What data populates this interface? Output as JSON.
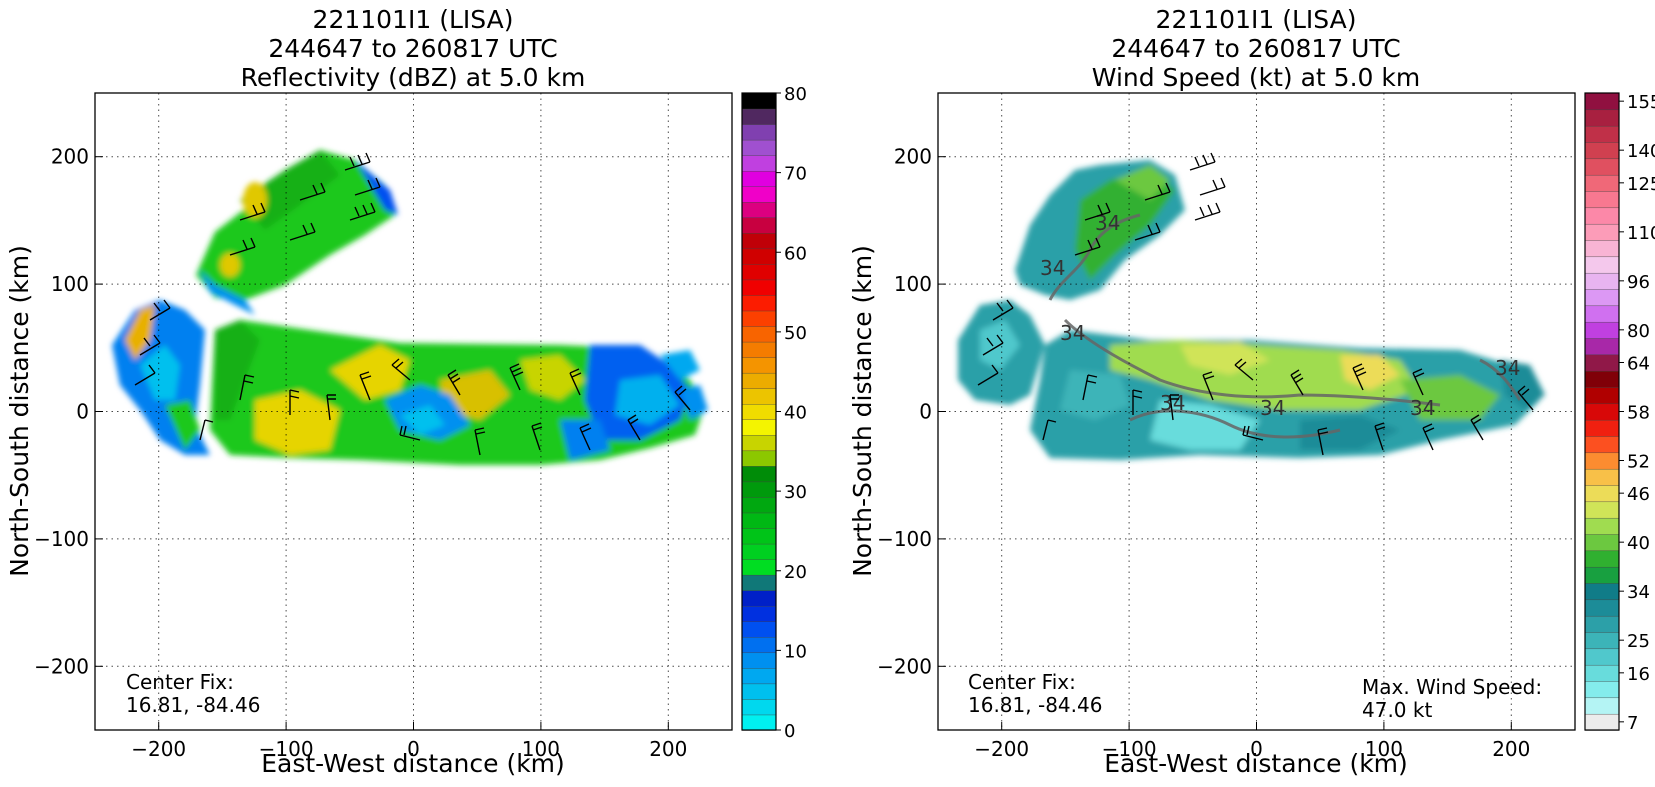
{
  "chart_data": [
    {
      "type": "heatmap",
      "title_lines": [
        "221101I1 (LISA)",
        "244647 to 260817 UTC",
        "Reflectivity (dBZ) at 5.0 km"
      ],
      "xlabel": "East-West distance (km)",
      "ylabel": "North-South distance (km)",
      "xlim": [
        -250,
        250
      ],
      "ylim": [
        -250,
        250
      ],
      "xticks": [
        -200,
        -100,
        0,
        100,
        200
      ],
      "yticks": [
        -200,
        -100,
        0,
        100,
        200
      ],
      "grid": true,
      "annotations": [
        {
          "text": "Center Fix:",
          "position": "bottom-left"
        },
        {
          "text": "16.81, -84.46",
          "position": "bottom-left"
        }
      ],
      "colorbar": {
        "range": [
          0,
          80
        ],
        "ticks": [
          0,
          10,
          20,
          30,
          40,
          50,
          60,
          70,
          80
        ],
        "colors": [
          "#00f0f0",
          "#00d8ee",
          "#00c0ee",
          "#00a8f0",
          "#0090f0",
          "#0070f0",
          "#0050f0",
          "#0030e0",
          "#0020c8",
          "#107878",
          "#00dd22",
          "#00d020",
          "#00c418",
          "#00b814",
          "#00a810",
          "#009a0c",
          "#008c08",
          "#8cc800",
          "#c8d400",
          "#f4f400",
          "#f0dc00",
          "#ecc400",
          "#ecac00",
          "#f49400",
          "#f47c00",
          "#f86400",
          "#fc4000",
          "#fc1c00",
          "#f00000",
          "#e00000",
          "#d00000",
          "#c00008",
          "#c80040",
          "#dc0080",
          "#f000c8",
          "#e000e0",
          "#c040e0",
          "#a050d0",
          "#8040b0",
          "#502860",
          "#000000"
        ]
      },
      "series": [
        {
          "region": "outer band north-west",
          "x_range": [
            -170,
            -10
          ],
          "y_range": [
            100,
            205
          ],
          "dbz_range": [
            15,
            40
          ]
        },
        {
          "region": "western band",
          "x_range": [
            -235,
            -165
          ],
          "y_range": [
            -35,
            85
          ],
          "dbz_range": [
            5,
            40
          ]
        },
        {
          "region": "main core",
          "x_range": [
            -160,
            150
          ],
          "y_range": [
            -40,
            55
          ],
          "dbz_range": [
            20,
            40
          ]
        },
        {
          "region": "eastern band",
          "x_range": [
            100,
            230
          ],
          "y_range": [
            -20,
            50
          ],
          "dbz_range": [
            0,
            20
          ]
        }
      ]
    },
    {
      "type": "heatmap",
      "title_lines": [
        "221101I1 (LISA)",
        "244647 to 260817 UTC",
        "Wind Speed (kt) at 5.0 km"
      ],
      "xlabel": "East-West distance (km)",
      "ylabel": "North-South distance (km)",
      "xlim": [
        -250,
        250
      ],
      "ylim": [
        -250,
        250
      ],
      "xticks": [
        -200,
        -100,
        0,
        100,
        200
      ],
      "yticks": [
        -200,
        -100,
        0,
        100,
        200
      ],
      "grid": true,
      "annotations": [
        {
          "text": "Center Fix:",
          "position": "bottom-left"
        },
        {
          "text": "16.81, -84.46",
          "position": "bottom-left"
        },
        {
          "text": "Max. Wind Speed:",
          "position": "bottom-right"
        },
        {
          "text": "47.0 kt",
          "position": "bottom-right"
        }
      ],
      "contour_labels": [
        "34",
        "34",
        "34",
        "34",
        "34",
        "34",
        "34"
      ],
      "max_wind_kt": 47.0,
      "colorbar": {
        "ticks": [
          7,
          16,
          25,
          34,
          40,
          46,
          52,
          58,
          64,
          80,
          96,
          110,
          125,
          140,
          155
        ],
        "colors": [
          "#ececec",
          "#b4f4f4",
          "#84ecec",
          "#68dcdc",
          "#50c8cc",
          "#3cb4b8",
          "#2ca0a8",
          "#1c8c98",
          "#107c88",
          "#18a040",
          "#30b030",
          "#6cc840",
          "#a0dc50",
          "#d0e458",
          "#ecdc58",
          "#f8c048",
          "#fc8c30",
          "#fc5020",
          "#f02010",
          "#d80808",
          "#b00000",
          "#800008",
          "#901848",
          "#a828a8",
          "#c040e0",
          "#d070f0",
          "#dc98f4",
          "#e8b4f0",
          "#f4c8ec",
          "#f8b4d4",
          "#fc9cb8",
          "#fc88a8",
          "#f87890",
          "#f06878",
          "#e05060",
          "#d04050",
          "#c03048",
          "#a82040",
          "#901040"
        ]
      },
      "series": [
        {
          "region": "outer band north-west",
          "x_range": [
            -185,
            -40
          ],
          "y_range": [
            75,
            190
          ],
          "kt_range": [
            25,
            40
          ]
        },
        {
          "region": "western band",
          "x_range": [
            -235,
            -165
          ],
          "y_range": [
            -10,
            85
          ],
          "kt_range": [
            16,
            30
          ]
        },
        {
          "region": "main core",
          "x_range": [
            -160,
            210
          ],
          "y_range": [
            -40,
            50
          ],
          "kt_range": [
            16,
            47
          ]
        },
        {
          "region": "eastern band",
          "x_range": [
            190,
            230
          ],
          "y_range": [
            -10,
            40
          ],
          "kt_range": [
            20,
            30
          ]
        }
      ]
    }
  ]
}
